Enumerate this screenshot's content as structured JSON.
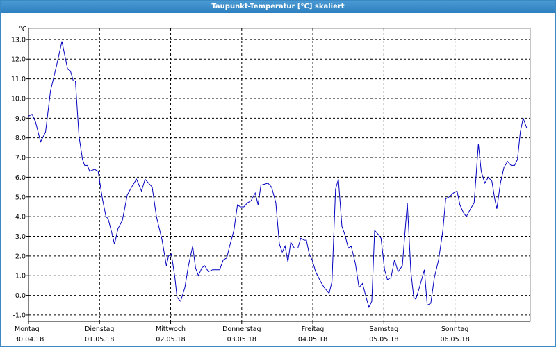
{
  "window_title": "Taupunkt-Temperatur [°C] skaliert",
  "chart_data": {
    "type": "line",
    "y_unit": "°C",
    "color": "#0000c0",
    "grid": true,
    "xlim": [
      0,
      7.06
    ],
    "ylim": [
      -1.32,
      13.56
    ],
    "xticks": [
      {
        "value": 0,
        "label": "Montag"
      },
      {
        "value": 1,
        "label": "Dienstag"
      },
      {
        "value": 2,
        "label": "Mittwoch"
      },
      {
        "value": 3,
        "label": "Donnerstag"
      },
      {
        "value": 4,
        "label": "Freitag"
      },
      {
        "value": 5,
        "label": "Samstag"
      },
      {
        "value": 6,
        "label": "Sonntag"
      }
    ],
    "xtick_dates": [
      "30.04.18",
      "01.05.18",
      "02.05.18",
      "03.05.18",
      "04.05.18",
      "05.05.18",
      "06.05.18"
    ],
    "yticks": [
      {
        "value": -1,
        "label": "-1.0"
      },
      {
        "value": 0,
        "label": "0.0"
      },
      {
        "value": 1,
        "label": "1.0"
      },
      {
        "value": 2,
        "label": "2.0"
      },
      {
        "value": 3,
        "label": "3.0"
      },
      {
        "value": 4,
        "label": "4.0"
      },
      {
        "value": 5,
        "label": "5.0"
      },
      {
        "value": 6,
        "label": "6.0"
      },
      {
        "value": 7,
        "label": "7.0"
      },
      {
        "value": 8,
        "label": "8.0"
      },
      {
        "value": 9,
        "label": "9.0"
      },
      {
        "value": 10,
        "label": "10.0"
      },
      {
        "value": 11,
        "label": "11.0"
      },
      {
        "value": 12,
        "label": "12.0"
      },
      {
        "value": 13,
        "label": "13.0"
      }
    ],
    "x": [
      0,
      0.05,
      0.1,
      0.17,
      0.24,
      0.31,
      0.39,
      0.47,
      0.55,
      0.59,
      0.63,
      0.66,
      0.71,
      0.76,
      0.79,
      0.83,
      0.86,
      0.93,
      0.98,
      1.04,
      1.09,
      1.12,
      1.17,
      1.21,
      1.26,
      1.32,
      1.39,
      1.45,
      1.52,
      1.59,
      1.64,
      1.69,
      1.74,
      1.8,
      1.88,
      1.94,
      1.97,
      2.01,
      2.06,
      2.09,
      2.14,
      2.2,
      2.25,
      2.31,
      2.35,
      2.39,
      2.44,
      2.48,
      2.53,
      2.59,
      2.69,
      2.74,
      2.79,
      2.83,
      2.89,
      2.94,
      2.98,
      3.03,
      3.08,
      3.13,
      3.19,
      3.23,
      3.27,
      3.37,
      3.42,
      3.48,
      3.53,
      3.57,
      3.61,
      3.65,
      3.69,
      3.74,
      3.79,
      3.83,
      3.88,
      3.91,
      3.95,
      3.99,
      4.04,
      4.11,
      4.16,
      4.23,
      4.27,
      4.32,
      4.36,
      4.41,
      4.45,
      4.5,
      4.54,
      4.6,
      4.65,
      4.7,
      4.75,
      4.79,
      4.83,
      4.87,
      4.92,
      4.96,
      5.01,
      5.05,
      5.1,
      5.15,
      5.2,
      5.26,
      5.33,
      5.38,
      5.42,
      5.45,
      5.5,
      5.57,
      5.61,
      5.66,
      5.71,
      5.77,
      5.83,
      5.87,
      5.92,
      5.98,
      6.03,
      6.07,
      6.12,
      6.16,
      6.22,
      6.27,
      6.33,
      6.37,
      6.42,
      6.47,
      6.52,
      6.56,
      6.59,
      6.64,
      6.69,
      6.74,
      6.79,
      6.84,
      6.88,
      6.92,
      6.96,
      7.01
    ],
    "values": [
      9.1,
      9.2,
      8.8,
      7.8,
      8.3,
      10.4,
      11.6,
      12.9,
      11.5,
      11.4,
      10.9,
      10.9,
      8.1,
      6.9,
      6.6,
      6.6,
      6.3,
      6.4,
      6.3,
      4.9,
      4.0,
      3.9,
      3.2,
      2.6,
      3.4,
      3.8,
      5.1,
      5.5,
      5.9,
      5.3,
      5.9,
      5.7,
      5.5,
      4.0,
      2.8,
      1.5,
      2.0,
      2.1,
      0.9,
      -0.1,
      -0.3,
      0.4,
      1.5,
      2.5,
      1.4,
      1.0,
      1.4,
      1.5,
      1.2,
      1.3,
      1.3,
      1.8,
      1.9,
      2.5,
      3.3,
      4.6,
      4.5,
      4.5,
      4.7,
      4.8,
      5.2,
      4.6,
      5.6,
      5.7,
      5.5,
      4.7,
      2.6,
      2.2,
      2.5,
      1.7,
      2.7,
      2.4,
      2.4,
      2.9,
      2.8,
      2.8,
      2.1,
      1.8,
      1.2,
      0.7,
      0.4,
      0.1,
      0.7,
      5.4,
      5.9,
      3.5,
      3.1,
      2.4,
      2.5,
      1.6,
      0.4,
      0.6,
      -0.1,
      -0.6,
      -0.3,
      3.3,
      3.1,
      2.9,
      1.3,
      0.8,
      0.9,
      1.8,
      1.2,
      1.5,
      4.7,
      1.2,
      -0.1,
      -0.2,
      0.4,
      1.3,
      -0.5,
      -0.4,
      0.9,
      1.8,
      3.3,
      4.9,
      5.0,
      5.2,
      5.3,
      4.6,
      4.2,
      4.0,
      4.4,
      4.7,
      7.7,
      6.3,
      5.7,
      6.0,
      5.8,
      4.9,
      4.4,
      5.7,
      6.5,
      6.8,
      6.6,
      6.6,
      6.9,
      8.3,
      9.0,
      8.5
    ]
  }
}
